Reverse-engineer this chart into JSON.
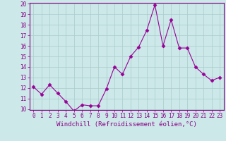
{
  "x": [
    0,
    1,
    2,
    3,
    4,
    5,
    6,
    7,
    8,
    9,
    10,
    11,
    12,
    13,
    14,
    15,
    16,
    17,
    18,
    19,
    20,
    21,
    22,
    23
  ],
  "y": [
    12.1,
    11.4,
    12.3,
    11.5,
    10.7,
    9.8,
    10.4,
    10.3,
    10.3,
    11.9,
    14.0,
    13.3,
    15.0,
    15.9,
    17.5,
    19.9,
    16.0,
    18.5,
    15.8,
    15.8,
    14.0,
    13.3,
    12.7,
    13.0
  ],
  "line_color": "#990099",
  "marker": "D",
  "marker_size": 2.5,
  "bg_color": "#cce8e8",
  "grid_color": "#aacccc",
  "xlabel": "Windchill (Refroidissement éolien,°C)",
  "ylim": [
    10,
    20
  ],
  "xlim": [
    -0.5,
    23.5
  ],
  "yticks": [
    10,
    11,
    12,
    13,
    14,
    15,
    16,
    17,
    18,
    19,
    20
  ],
  "xticks": [
    0,
    1,
    2,
    3,
    4,
    5,
    6,
    7,
    8,
    9,
    10,
    11,
    12,
    13,
    14,
    15,
    16,
    17,
    18,
    19,
    20,
    21,
    22,
    23
  ],
  "tick_color": "#880088",
  "tick_fontsize": 5.5,
  "xlabel_fontsize": 6.5,
  "spine_color": "#880088"
}
